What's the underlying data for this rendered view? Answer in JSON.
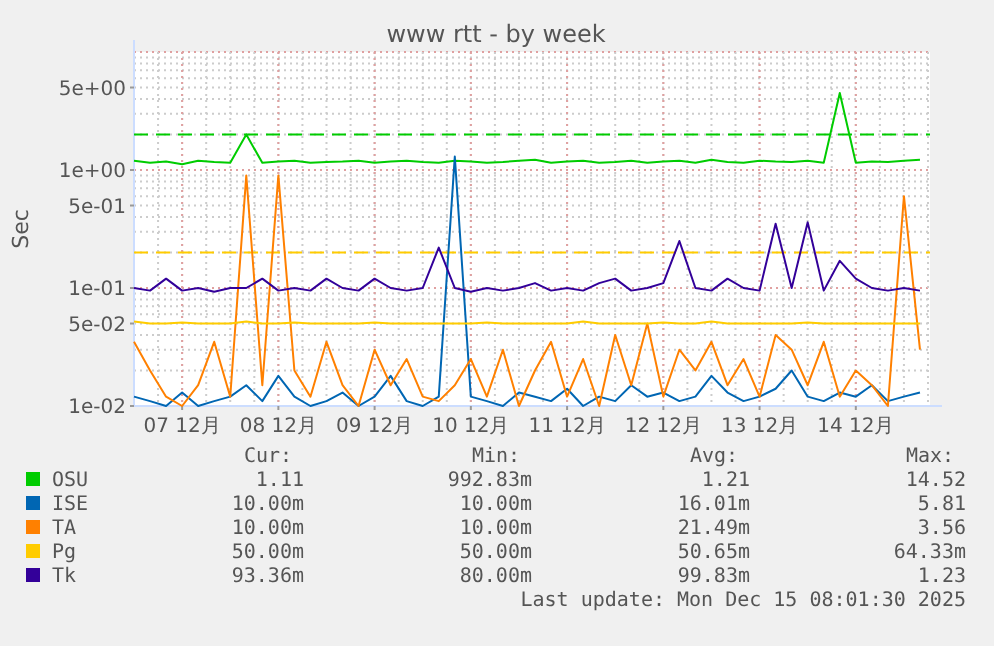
{
  "chart_data": {
    "type": "line",
    "title": "www rtt - by week",
    "ylabel": "Sec",
    "log": "y",
    "ylim": [
      0.01,
      10
    ],
    "yticks": [
      {
        "value": 0.01,
        "label": "1e-02"
      },
      {
        "value": 0.05,
        "label": "5e-02"
      },
      {
        "value": 0.1,
        "label": "1e-01"
      },
      {
        "value": 0.5,
        "label": "5e-01"
      },
      {
        "value": 1,
        "label": "1e+00"
      },
      {
        "value": 5,
        "label": "5e+00"
      }
    ],
    "xlim": [
      "2025-12-06T12:00",
      "2025-12-14T18:30"
    ],
    "xticks": [
      {
        "value": "2025-12-07",
        "label": "07 12月"
      },
      {
        "value": "2025-12-08",
        "label": "08 12月"
      },
      {
        "value": "2025-12-09",
        "label": "09 12月"
      },
      {
        "value": "2025-12-10",
        "label": "10 12月"
      },
      {
        "value": "2025-12-11",
        "label": "11 12月"
      },
      {
        "value": "2025-12-12",
        "label": "12 12月"
      },
      {
        "value": "2025-12-13",
        "label": "13 12月"
      },
      {
        "value": "2025-12-14",
        "label": "14 12月"
      }
    ],
    "x": [
      "2025-12-06T12:00",
      "2025-12-06T16:00",
      "2025-12-06T20:00",
      "2025-12-07T00:00",
      "2025-12-07T04:00",
      "2025-12-07T08:00",
      "2025-12-07T12:00",
      "2025-12-07T16:00",
      "2025-12-07T20:00",
      "2025-12-08T00:00",
      "2025-12-08T04:00",
      "2025-12-08T08:00",
      "2025-12-08T12:00",
      "2025-12-08T16:00",
      "2025-12-08T20:00",
      "2025-12-09T00:00",
      "2025-12-09T04:00",
      "2025-12-09T08:00",
      "2025-12-09T12:00",
      "2025-12-09T16:00",
      "2025-12-09T20:00",
      "2025-12-10T00:00",
      "2025-12-10T04:00",
      "2025-12-10T08:00",
      "2025-12-10T12:00",
      "2025-12-10T16:00",
      "2025-12-10T20:00",
      "2025-12-11T00:00",
      "2025-12-11T04:00",
      "2025-12-11T08:00",
      "2025-12-11T12:00",
      "2025-12-11T16:00",
      "2025-12-11T20:00",
      "2025-12-12T00:00",
      "2025-12-12T04:00",
      "2025-12-12T08:00",
      "2025-12-12T12:00",
      "2025-12-12T16:00",
      "2025-12-12T20:00",
      "2025-12-13T00:00",
      "2025-12-13T04:00",
      "2025-12-13T08:00",
      "2025-12-13T12:00",
      "2025-12-13T16:00",
      "2025-12-13T20:00",
      "2025-12-14T00:00",
      "2025-12-14T04:00",
      "2025-12-14T08:00",
      "2025-12-14T12:00",
      "2025-12-14T16:00"
    ],
    "series": [
      {
        "name": "OSU",
        "color": "#00cc00",
        "values": [
          1.2,
          1.15,
          1.18,
          1.12,
          1.2,
          1.17,
          1.15,
          2.0,
          1.15,
          1.18,
          1.2,
          1.15,
          1.17,
          1.18,
          1.2,
          1.15,
          1.18,
          1.2,
          1.17,
          1.15,
          1.2,
          1.18,
          1.15,
          1.17,
          1.2,
          1.22,
          1.15,
          1.18,
          1.2,
          1.15,
          1.17,
          1.2,
          1.15,
          1.18,
          1.2,
          1.15,
          1.22,
          1.17,
          1.15,
          1.2,
          1.18,
          1.17,
          1.2,
          1.15,
          4.5,
          1.15,
          1.18,
          1.17,
          1.2,
          1.22
        ]
      },
      {
        "name": "ISE",
        "color": "#0066b3",
        "values": [
          0.012,
          0.011,
          0.01,
          0.013,
          0.01,
          0.011,
          0.012,
          0.015,
          0.011,
          0.018,
          0.012,
          0.01,
          0.011,
          0.013,
          0.01,
          0.012,
          0.018,
          0.011,
          0.01,
          0.012,
          1.3,
          0.012,
          0.011,
          0.01,
          0.013,
          0.012,
          0.011,
          0.014,
          0.01,
          0.012,
          0.011,
          0.015,
          0.012,
          0.013,
          0.011,
          0.012,
          0.018,
          0.013,
          0.011,
          0.012,
          0.014,
          0.02,
          0.012,
          0.011,
          0.013,
          0.012,
          0.015,
          0.011,
          0.012,
          0.013
        ]
      },
      {
        "name": "TA",
        "color": "#ff8000",
        "values": [
          0.035,
          0.02,
          0.012,
          0.01,
          0.015,
          0.035,
          0.012,
          0.9,
          0.015,
          0.9,
          0.02,
          0.012,
          0.035,
          0.015,
          0.01,
          0.03,
          0.015,
          0.025,
          0.012,
          0.011,
          0.015,
          0.025,
          0.012,
          0.03,
          0.01,
          0.02,
          0.035,
          0.012,
          0.025,
          0.01,
          0.04,
          0.015,
          0.05,
          0.012,
          0.03,
          0.02,
          0.035,
          0.015,
          0.025,
          0.012,
          0.04,
          0.03,
          0.015,
          0.035,
          0.012,
          0.02,
          0.015,
          0.01,
          0.6,
          0.03
        ]
      },
      {
        "name": "Pg",
        "color": "#ffcc00",
        "values": [
          0.052,
          0.05,
          0.05,
          0.051,
          0.05,
          0.05,
          0.05,
          0.052,
          0.05,
          0.05,
          0.051,
          0.05,
          0.05,
          0.05,
          0.05,
          0.051,
          0.05,
          0.05,
          0.05,
          0.05,
          0.05,
          0.05,
          0.051,
          0.05,
          0.05,
          0.05,
          0.05,
          0.05,
          0.052,
          0.05,
          0.05,
          0.05,
          0.05,
          0.051,
          0.05,
          0.05,
          0.052,
          0.05,
          0.05,
          0.05,
          0.05,
          0.05,
          0.051,
          0.05,
          0.05,
          0.05,
          0.05,
          0.05,
          0.05,
          0.05
        ]
      },
      {
        "name": "Tk",
        "color": "#330099",
        "values": [
          0.1,
          0.095,
          0.12,
          0.095,
          0.1,
          0.093,
          0.1,
          0.1,
          0.12,
          0.095,
          0.1,
          0.095,
          0.12,
          0.1,
          0.095,
          0.12,
          0.1,
          0.095,
          0.1,
          0.22,
          0.1,
          0.093,
          0.1,
          0.095,
          0.1,
          0.11,
          0.095,
          0.1,
          0.095,
          0.11,
          0.12,
          0.095,
          0.1,
          0.11,
          0.25,
          0.1,
          0.095,
          0.12,
          0.1,
          0.095,
          0.35,
          0.1,
          0.36,
          0.095,
          0.17,
          0.12,
          0.1,
          0.095,
          0.1,
          0.095
        ]
      }
    ],
    "ref_lines": [
      {
        "axis": "y",
        "value": 2,
        "color": "#00cc00",
        "line_style": "dashed"
      },
      {
        "axis": "y",
        "value": 0.2,
        "color": "#ffcc00",
        "line_style": "dashed"
      }
    ],
    "grid": true,
    "legend": "bottom",
    "annotations": [
      "Cur:",
      "Min:",
      "Avg:",
      "Max:",
      "1.11",
      "992.83m",
      "1.21",
      "14.52",
      "10.00m",
      "10.00m",
      "16.01m",
      "5.81",
      "10.00m",
      "10.00m",
      "21.49m",
      "3.56",
      "50.00m",
      "50.00m",
      "50.65m",
      "64.33m",
      "93.36m",
      "80.00m",
      "99.83m",
      "1.23",
      "Last update: Mon Dec 15 08:01:30 2025"
    ]
  }
}
